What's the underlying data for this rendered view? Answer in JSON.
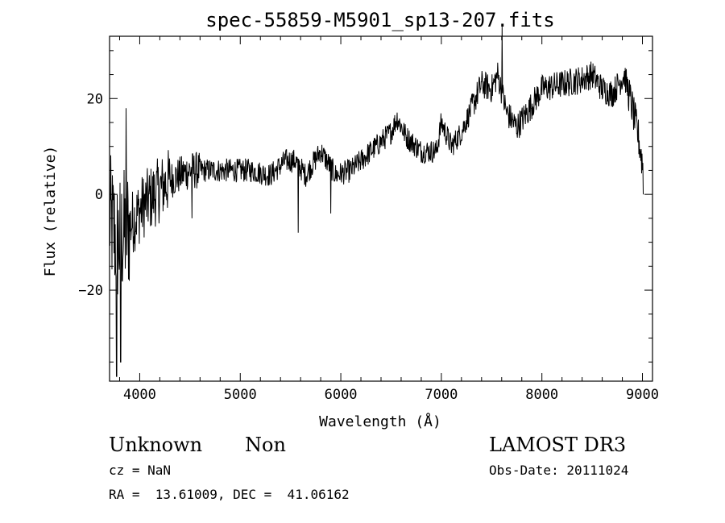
{
  "chart_data": {
    "type": "line",
    "title": "spec-55859-M5901_sp13-207.fits",
    "xlabel": "Wavelength (Å)",
    "ylabel": "Flux (relative)",
    "xlim": [
      3700,
      9100
    ],
    "ylim": [
      -39,
      33
    ],
    "xticks": [
      4000,
      5000,
      6000,
      7000,
      8000,
      9000
    ],
    "xtick_labels": [
      "4000",
      "5000",
      "6000",
      "7000",
      "8000",
      "9000"
    ],
    "yticks": [
      -20,
      0,
      20
    ],
    "ytick_labels": [
      "−20",
      "0",
      "20"
    ],
    "series": [
      {
        "name": "spectrum",
        "anchors_x": [
          3700,
          3780,
          3850,
          3950,
          4050,
          4150,
          4300,
          4500,
          4700,
          4900,
          5100,
          5300,
          5450,
          5550,
          5650,
          5800,
          5950,
          6100,
          6250,
          6400,
          6500,
          6560,
          6650,
          6800,
          6950,
          7000,
          7100,
          7200,
          7300,
          7400,
          7500,
          7560,
          7650,
          7750,
          7850,
          8000,
          8200,
          8400,
          8500,
          8600,
          8700,
          8820,
          8900,
          8960,
          9010
        ],
        "anchors_y": [
          -5,
          -10,
          -8,
          -5,
          -2,
          0,
          3,
          5,
          5,
          5,
          5,
          4,
          7,
          7,
          4,
          9,
          4,
          5,
          8,
          11,
          13,
          16,
          12,
          9,
          9,
          15,
          10,
          13,
          18,
          23,
          22,
          25,
          17,
          14,
          17,
          22,
          23,
          24,
          25,
          22,
          21,
          25,
          18,
          12,
          5
        ],
        "spikes": [
          {
            "x": 7605,
            "y": 35
          },
          {
            "x": 5575,
            "y": -8
          },
          {
            "x": 3810,
            "y": -35
          },
          {
            "x": 3865,
            "y": 18
          },
          {
            "x": 3770,
            "y": -38
          },
          {
            "x": 4520,
            "y": -5
          },
          {
            "x": 5900,
            "y": -4
          },
          {
            "x": 9010,
            "y": 0
          }
        ]
      }
    ]
  },
  "info": {
    "object_class": "Unknown",
    "subclass": "Non",
    "survey": "LAMOST DR3",
    "redshift": "cz = NaN",
    "obs_date": "Obs-Date: 20111024",
    "coordinates": "RA =  13.61009, DEC =  41.06162"
  }
}
